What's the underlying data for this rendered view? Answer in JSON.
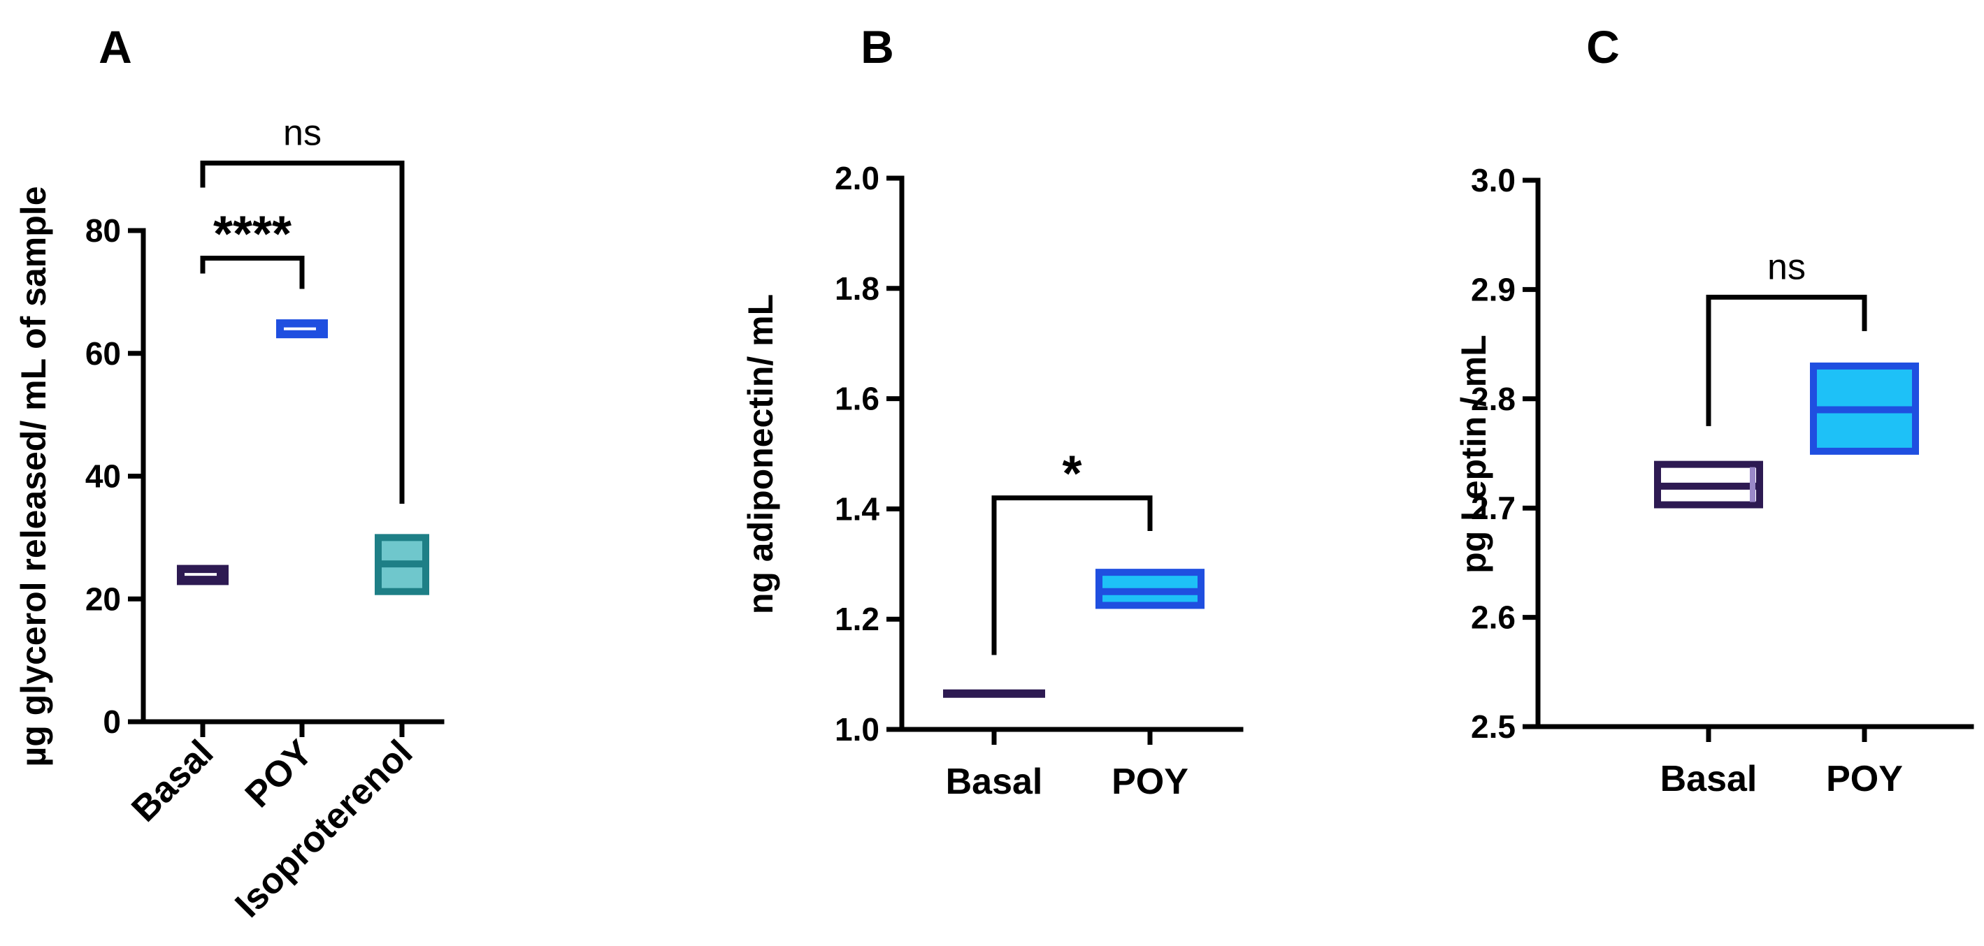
{
  "chart_data": [
    {
      "type": "box",
      "panel": "A",
      "ylabel": "µg glycerol released/ mL of sample",
      "ylim": [
        0,
        80
      ],
      "yticks": [
        0,
        20,
        40,
        60,
        80
      ],
      "yticklabels": [
        "0",
        "20",
        "40",
        "60",
        "80"
      ],
      "categories": [
        "Basal",
        "POY",
        "Isoproterenol"
      ],
      "boxes": [
        {
          "low": 22.6,
          "median": 24.0,
          "high": 25.2,
          "color": "#2d1a52"
        },
        {
          "low": 62.8,
          "median": 64.0,
          "high": 65.2,
          "color": "#1f4fe0"
        },
        {
          "low": 21.2,
          "median": 25.7,
          "high": 30.0,
          "color": "#1e7f86",
          "fill": "#6fc7cc"
        }
      ],
      "comparisons": [
        {
          "from": 0,
          "to": 1,
          "label": "****",
          "y": 75.5,
          "drop_from": 73,
          "drop_to": 70.5
        },
        {
          "from": 0,
          "to": 2,
          "label": "ns",
          "y": 91,
          "drop_from": 87,
          "drop_to": 35.5
        }
      ]
    },
    {
      "type": "box",
      "panel": "B",
      "ylabel": "ng adiponectin/ mL",
      "ylim": [
        1.0,
        2.0
      ],
      "yticks": [
        1.0,
        1.2,
        1.4,
        1.6,
        1.8,
        2.0
      ],
      "yticklabels": [
        "1.0",
        "1.2",
        "1.4",
        "1.6",
        "1.8",
        "2.0"
      ],
      "categories": [
        "Basal",
        "POY"
      ],
      "boxes": [
        {
          "low": 1.065,
          "median": 1.065,
          "high": 1.065,
          "color": "#2d1a52"
        },
        {
          "low": 1.225,
          "median": 1.25,
          "high": 1.285,
          "color": "#1f4fe0",
          "fill": "#1ec1f7"
        }
      ],
      "comparisons": [
        {
          "from": 0,
          "to": 1,
          "label": "*",
          "y": 1.42,
          "drop_from": 1.135,
          "drop_to": 1.36
        }
      ]
    },
    {
      "type": "box",
      "panel": "C",
      "ylabel": "pg Leptin / mL",
      "ylim": [
        2.5,
        3.0
      ],
      "yticks": [
        2.5,
        2.6,
        2.7,
        2.8,
        2.9,
        3.0
      ],
      "yticklabels": [
        "2.5",
        "2.6",
        "2.7",
        "2.8",
        "2.9",
        "3.0"
      ],
      "categories": [
        "Basal",
        "POY"
      ],
      "boxes": [
        {
          "low": 2.703,
          "median": 2.72,
          "high": 2.74,
          "color": "#2d1a52"
        },
        {
          "low": 2.752,
          "median": 2.79,
          "high": 2.83,
          "color": "#1f4fe0",
          "fill": "#1ec1f7"
        }
      ],
      "comparisons": [
        {
          "from": 0,
          "to": 1,
          "label": "ns",
          "y": 2.893,
          "drop_from": 2.775,
          "drop_to": 2.862
        }
      ]
    }
  ]
}
